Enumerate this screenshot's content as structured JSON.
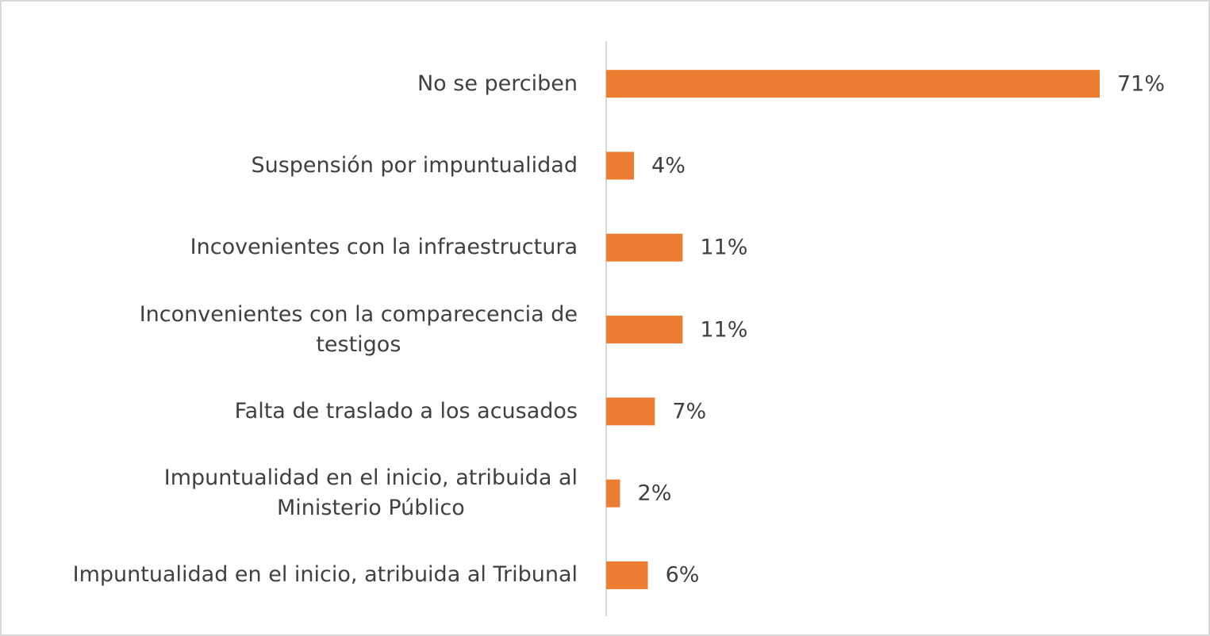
{
  "chart_data": {
    "type": "bar",
    "orientation": "horizontal",
    "categories": [
      "No se perciben",
      "Suspensión por impuntualidad",
      "Incovenientes con la infraestructura",
      "Inconvenientes con la comparecencia de\ntestigos",
      "Falta de traslado  a los acusados",
      "Impuntualidad en el inicio, atribuida al\nMinisterio Público",
      "Impuntualidad en el inicio, atribuida al Tribunal"
    ],
    "values": [
      71,
      4,
      11,
      11,
      7,
      2,
      6
    ],
    "value_labels": [
      "71%",
      "4%",
      "11%",
      "11%",
      "7%",
      "2%",
      "6%"
    ],
    "color": "#ed7d31"
  }
}
